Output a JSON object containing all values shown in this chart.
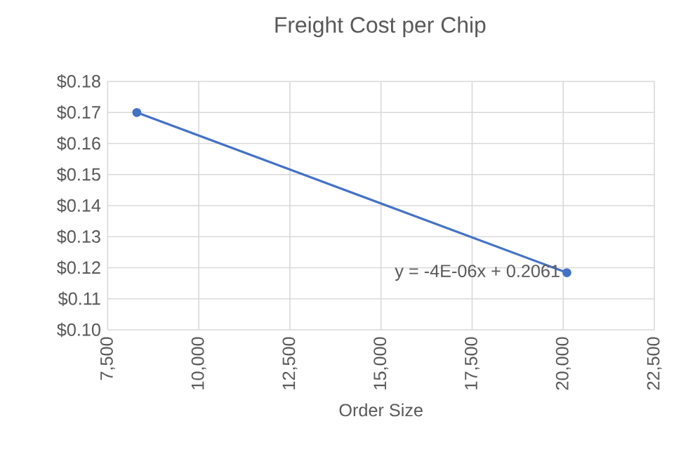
{
  "chart_data": {
    "type": "line",
    "title": "Freight Cost per Chip",
    "xlabel": "Order Size",
    "x": [
      8300,
      20100
    ],
    "series": [
      {
        "color": "#4472c4",
        "values": [
          0.17,
          0.1184
        ]
      }
    ],
    "marker": "circle",
    "line_style": "solid",
    "grid": true,
    "xlim": [
      7500,
      22500
    ],
    "xticks": [
      {
        "value": 7500,
        "label": "7,500"
      },
      {
        "value": 10000,
        "label": "10,000"
      },
      {
        "value": 12500,
        "label": "12,500"
      },
      {
        "value": 15000,
        "label": "15,000"
      },
      {
        "value": 17500,
        "label": "17,500"
      },
      {
        "value": 20000,
        "label": "20,000"
      },
      {
        "value": 22500,
        "label": "22,500"
      }
    ],
    "ylim": [
      0.1,
      0.18
    ],
    "yticks": [
      {
        "value": 0.1,
        "label": "$0.10"
      },
      {
        "value": 0.11,
        "label": "$0.11"
      },
      {
        "value": 0.12,
        "label": "$0.12"
      },
      {
        "value": 0.13,
        "label": "$0.13"
      },
      {
        "value": 0.14,
        "label": "$0.14"
      },
      {
        "value": 0.15,
        "label": "$0.15"
      },
      {
        "value": 0.16,
        "label": "$0.16"
      },
      {
        "value": 0.17,
        "label": "$0.17"
      },
      {
        "value": 0.18,
        "label": "$0.18"
      }
    ],
    "annotations": [
      "y = -4E-06x + 0.2061"
    ]
  }
}
